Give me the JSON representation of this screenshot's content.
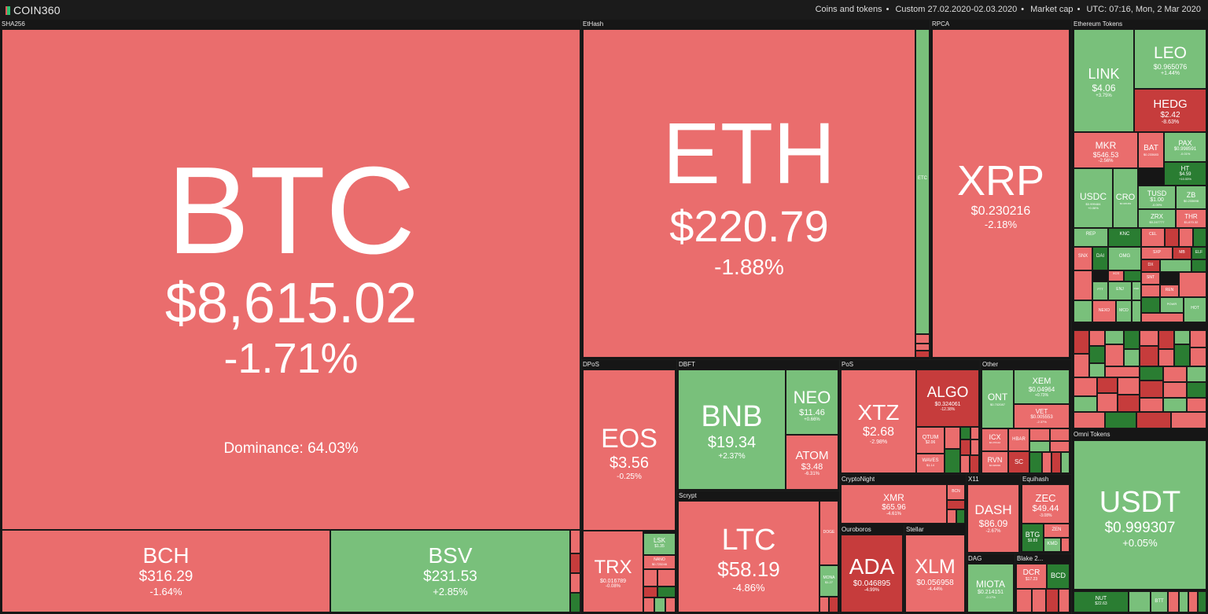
{
  "header": {
    "logo": "COIN360",
    "filter_coins": "Coins and tokens",
    "filter_period": "Custom 27.02.2020-02.03.2020",
    "filter_metric": "Market cap",
    "time": "UTC: 07:16, Mon, 2 Mar 2020",
    "separator": "•"
  },
  "colors": {
    "down": "#ea6d6d",
    "down_strong": "#c63c3c",
    "up": "#79c07b",
    "up_strong": "#2a7d32",
    "background": "#1c1e1d"
  },
  "groups": {
    "sha256": "SHA256",
    "ethash": "EtHash",
    "rpca": "RPCA",
    "eth_tokens": "Ethereum Tokens",
    "dpos": "DPoS",
    "dbft": "DBFT",
    "pos": "PoS",
    "other": "Other",
    "scrypt": "Scrypt",
    "cryptonight": "CryptoNight",
    "x11": "X11",
    "equihash": "Equihash",
    "ouroboros": "Ouroboros",
    "stellar": "Stellar",
    "dag": "DAG",
    "blake": "Blake 2...",
    "omni": "Omni Tokens"
  },
  "coins": {
    "btc": {
      "sym": "BTC",
      "price": "$8,615.02",
      "chg": "-1.71%",
      "extra": "Dominance: 64.03%"
    },
    "bch": {
      "sym": "BCH",
      "price": "$316.29",
      "chg": "-1.64%"
    },
    "bsv": {
      "sym": "BSV",
      "price": "$231.53",
      "chg": "+2.85%"
    },
    "eth": {
      "sym": "ETH",
      "price": "$220.79",
      "chg": "-1.88%"
    },
    "etc": {
      "sym": "ETC"
    },
    "xrp": {
      "sym": "XRP",
      "price": "$0.230216",
      "chg": "-2.18%"
    },
    "link": {
      "sym": "LINK",
      "price": "$4.06",
      "chg": "+3.75%"
    },
    "leo": {
      "sym": "LEO",
      "price": "$0.965076",
      "chg": "+1.44%"
    },
    "hedg": {
      "sym": "HEDG",
      "price": "$2.42",
      "chg": "-8.63%"
    },
    "mkr": {
      "sym": "MKR",
      "price": "$546.53",
      "chg": "-2.56%"
    },
    "bat": {
      "sym": "BAT",
      "price": "$0.233683"
    },
    "pax": {
      "sym": "PAX",
      "price": "$0.998591",
      "chg": "-0.01%"
    },
    "ht": {
      "sym": "HT",
      "price": "$4.59",
      "chg": "+10.53%"
    },
    "usdc": {
      "sym": "USDC",
      "price": "$0.999484",
      "chg": "+0.06%"
    },
    "cro": {
      "sym": "CRO",
      "price": "$0.045463"
    },
    "tusd": {
      "sym": "TUSD",
      "price": "$1.00",
      "chg": "-0.09%"
    },
    "zb": {
      "sym": "ZB",
      "price": "$0.233698"
    },
    "zrx": {
      "sym": "ZRX",
      "price": "$0.247777"
    },
    "thr": {
      "sym": "THR",
      "price": "$1,670.32"
    },
    "eos": {
      "sym": "EOS",
      "price": "$3.56",
      "chg": "-0.25%"
    },
    "trx": {
      "sym": "TRX",
      "price": "$0.016789",
      "chg": "-0.08%"
    },
    "lsk": {
      "sym": "LSK",
      "price": "$1.35"
    },
    "nano": {
      "sym": "NANO",
      "price": "$0.723246"
    },
    "bnb": {
      "sym": "BNB",
      "price": "$19.34",
      "chg": "+2.37%"
    },
    "neo": {
      "sym": "NEO",
      "price": "$11.46",
      "chg": "+0.66%"
    },
    "atom": {
      "sym": "ATOM",
      "price": "$3.48",
      "chg": "-6.31%"
    },
    "ltc": {
      "sym": "LTC",
      "price": "$58.19",
      "chg": "-4.86%"
    },
    "doge": {
      "sym": "DOGE"
    },
    "mona": {
      "sym": "MONA",
      "price": "$1.27"
    },
    "xtz": {
      "sym": "XTZ",
      "price": "$2.68",
      "chg": "-2.98%"
    },
    "algo": {
      "sym": "ALGO",
      "price": "$0.324061",
      "chg": "-12.38%"
    },
    "qtum": {
      "sym": "QTUM",
      "price": "$2.06"
    },
    "waves": {
      "sym": "WAVES",
      "price": "$1.14"
    },
    "ont": {
      "sym": "ONT",
      "price": "$0.702087"
    },
    "xem": {
      "sym": "XEM",
      "price": "$0.04964",
      "chg": "+0.73%"
    },
    "vet": {
      "sym": "VET",
      "price": "$0.005553",
      "chg": "-2.37%"
    },
    "icx": {
      "sym": "ICX",
      "price": "$0.270142"
    },
    "hbar": {
      "sym": "HBAR"
    },
    "rvn": {
      "sym": "RVN",
      "price": "$0.020093"
    },
    "sc": {
      "sym": "SC"
    },
    "xmr": {
      "sym": "XMR",
      "price": "$65.96",
      "chg": "-4.61%"
    },
    "bcn": {
      "sym": "BCN"
    },
    "dash": {
      "sym": "DASH",
      "price": "$86.09",
      "chg": "-2.67%"
    },
    "zec": {
      "sym": "ZEC",
      "price": "$49.44",
      "chg": "-3.08%"
    },
    "btg": {
      "sym": "BTG",
      "price": "$9.89"
    },
    "zen": {
      "sym": "ZEN"
    },
    "kmd": {
      "sym": "KMD"
    },
    "ada": {
      "sym": "ADA",
      "price": "$0.046895",
      "chg": "-4.99%"
    },
    "xlm": {
      "sym": "XLM",
      "price": "$0.056958",
      "chg": "-4.44%"
    },
    "miota": {
      "sym": "MIOTA",
      "price": "$0.214151",
      "chg": "-0.17%"
    },
    "dcr": {
      "sym": "DCR",
      "price": "$17.23"
    },
    "bcd": {
      "sym": "BCD"
    },
    "usdt": {
      "sym": "USDT",
      "price": "$0.999307",
      "chg": "+0.05%"
    },
    "nut": {
      "sym": "NUT",
      "price": "$22.63"
    },
    "btt": {
      "sym": "BTT"
    }
  },
  "small_tokens": [
    "REP",
    "KNC",
    "CEL",
    "SNX",
    "DAI",
    "OMG",
    "SXP",
    "MB",
    "ELF",
    "XCS",
    "DX",
    "FTT",
    "ENJ",
    "DGD",
    "SNT",
    "REN",
    "NEXO",
    "MCO",
    "POWR",
    "HOT"
  ]
}
